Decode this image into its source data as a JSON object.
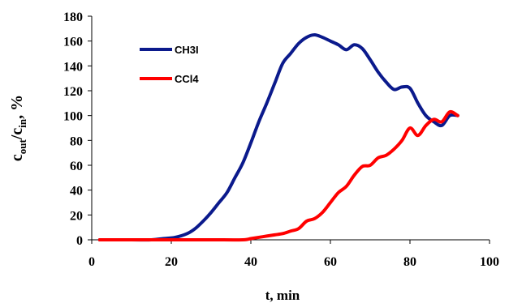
{
  "chart_data": {
    "type": "line",
    "xlabel": "t, min",
    "ylabel_parts": {
      "c1": "c",
      "sub1": "out",
      "slash": "/c",
      "sub2": "in",
      "unit": ", %"
    },
    "xlim": [
      0,
      100
    ],
    "ylim": [
      0,
      180
    ],
    "x_ticks": [
      0,
      20,
      40,
      60,
      80,
      100
    ],
    "y_ticks": [
      0,
      20,
      40,
      60,
      80,
      100,
      120,
      140,
      160,
      180
    ],
    "grid": false,
    "legend_position": "top-left inside plot",
    "series": [
      {
        "name": "CH3I",
        "color": "#0b1a8c",
        "x": [
          2,
          10,
          15,
          18,
          21,
          24,
          26,
          28,
          30,
          32,
          34,
          36,
          38,
          40,
          42,
          44,
          46,
          48,
          50,
          52,
          54,
          56,
          58,
          60,
          62,
          64,
          66,
          68,
          70,
          72,
          74,
          76,
          78,
          80,
          82,
          84,
          86,
          88,
          90,
          92
        ],
        "y": [
          0,
          0,
          0,
          1,
          2,
          5,
          9,
          15,
          22,
          30,
          38,
          50,
          62,
          78,
          95,
          110,
          126,
          142,
          150,
          158,
          163,
          165,
          163,
          160,
          157,
          153,
          157,
          154,
          145,
          135,
          127,
          121,
          123,
          122,
          110,
          100,
          95,
          92,
          100,
          100
        ],
        "stroke_width": 4
      },
      {
        "name": "CCl4",
        "color": "#ff0000",
        "x": [
          2,
          10,
          20,
          30,
          38,
          40,
          42,
          44,
          46,
          48,
          50,
          52,
          54,
          56,
          58,
          60,
          62,
          64,
          66,
          68,
          70,
          72,
          74,
          76,
          78,
          80,
          82,
          84,
          86,
          88,
          90,
          92
        ],
        "y": [
          0,
          0,
          0,
          0,
          0,
          1,
          2,
          3,
          4,
          5,
          7,
          9,
          15,
          17,
          22,
          30,
          38,
          43,
          52,
          59,
          60,
          66,
          68,
          73,
          80,
          90,
          84,
          92,
          97,
          95,
          103,
          100
        ],
        "stroke_width": 4
      }
    ]
  }
}
